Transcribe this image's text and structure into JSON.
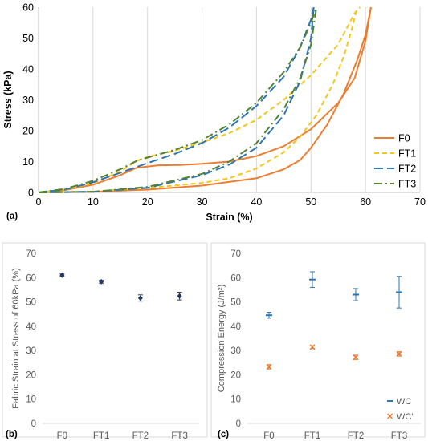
{
  "panels": {
    "a": {
      "tag": "(a)"
    },
    "b": {
      "tag": "(b)"
    },
    "c": {
      "tag": "(c)"
    }
  },
  "chart_data": [
    {
      "panel": "a",
      "type": "line",
      "title": "",
      "xlabel": "Strain (%)",
      "ylabel": "Stress (kPa)",
      "xlim": [
        0,
        70
      ],
      "ylim": [
        0,
        60
      ],
      "xticks": [
        0,
        10,
        20,
        30,
        40,
        50,
        60,
        70
      ],
      "yticks": [
        0,
        10,
        20,
        30,
        40,
        50,
        60
      ],
      "grid": "vertical",
      "legend_position": "right",
      "series": [
        {
          "name": "F0",
          "color": "#ED7D31",
          "dash": "solid",
          "loading": [
            [
              0,
              0
            ],
            [
              5,
              0.8
            ],
            [
              10,
              2.5
            ],
            [
              15,
              5.6
            ],
            [
              18,
              8
            ],
            [
              22,
              8.8
            ],
            [
              26,
              8.9
            ],
            [
              30,
              9.3
            ],
            [
              35,
              10
            ],
            [
              40,
              11.8
            ],
            [
              45,
              15
            ],
            [
              50,
              20.5
            ],
            [
              55,
              29
            ],
            [
              58,
              37
            ],
            [
              60,
              49
            ],
            [
              61,
              60
            ]
          ],
          "unloading": [
            [
              0,
              0
            ],
            [
              10,
              0.2
            ],
            [
              20,
              0.9
            ],
            [
              30,
              2.2
            ],
            [
              40,
              4.6
            ],
            [
              45,
              7.5
            ],
            [
              48,
              10.5
            ],
            [
              50,
              14.5
            ],
            [
              53,
              22
            ],
            [
              56,
              32
            ],
            [
              58.5,
              43
            ],
            [
              60,
              51
            ],
            [
              61,
              60
            ]
          ]
        },
        {
          "name": "FT1",
          "color": "#F5C518",
          "dash": "short-dash",
          "loading": [
            [
              0,
              0
            ],
            [
              5,
              1
            ],
            [
              10,
              3
            ],
            [
              15,
              6.8
            ],
            [
              18,
              10.2
            ],
            [
              20,
              11.5
            ],
            [
              25,
              13.5
            ],
            [
              30,
              16.2
            ],
            [
              35,
              19.2
            ],
            [
              40,
              23.5
            ],
            [
              45,
              30
            ],
            [
              50,
              38
            ],
            [
              55,
              48
            ],
            [
              58,
              58
            ],
            [
              59,
              60
            ]
          ],
          "unloading": [
            [
              0,
              0
            ],
            [
              10,
              0.3
            ],
            [
              20,
              1.4
            ],
            [
              30,
              3.1
            ],
            [
              35,
              4.6
            ],
            [
              40,
              7.8
            ],
            [
              45,
              13
            ],
            [
              48,
              18
            ],
            [
              51,
              25
            ],
            [
              54,
              35
            ],
            [
              56,
              44
            ],
            [
              57.5,
              53
            ],
            [
              58.5,
              60
            ]
          ]
        },
        {
          "name": "FT2",
          "color": "#2E75B6",
          "dash": "long-dash",
          "loading": [
            [
              0,
              0
            ],
            [
              5,
              1
            ],
            [
              10,
              3.3
            ],
            [
              15,
              6.4
            ],
            [
              20,
              9.5
            ],
            [
              25,
              12.5
            ],
            [
              30,
              16
            ],
            [
              35,
              21
            ],
            [
              40,
              28
            ],
            [
              45,
              37.5
            ],
            [
              48,
              47
            ],
            [
              50,
              56
            ],
            [
              50.5,
              60
            ]
          ],
          "unloading": [
            [
              0,
              0
            ],
            [
              10,
              0.2
            ],
            [
              20,
              1.5
            ],
            [
              30,
              5.6
            ],
            [
              35,
              9
            ],
            [
              40,
              14.5
            ],
            [
              45,
              25
            ],
            [
              48,
              36
            ],
            [
              50,
              50
            ],
            [
              50.5,
              60
            ]
          ]
        },
        {
          "name": "FT3",
          "color": "#548235",
          "dash": "dash-dot",
          "loading": [
            [
              0,
              0
            ],
            [
              5,
              1.2
            ],
            [
              10,
              3.8
            ],
            [
              15,
              7.5
            ],
            [
              18,
              10.2
            ],
            [
              20,
              11.3
            ],
            [
              25,
              13.8
            ],
            [
              30,
              17
            ],
            [
              35,
              22
            ],
            [
              40,
              29
            ],
            [
              45,
              39
            ],
            [
              48,
              47
            ],
            [
              50,
              55
            ],
            [
              51,
              60
            ]
          ],
          "unloading": [
            [
              0,
              0
            ],
            [
              10,
              0.2
            ],
            [
              20,
              1.8
            ],
            [
              30,
              6
            ],
            [
              35,
              10
            ],
            [
              40,
              16
            ],
            [
              45,
              27
            ],
            [
              48,
              37
            ],
            [
              50,
              48
            ],
            [
              51,
              60
            ]
          ]
        }
      ]
    },
    {
      "panel": "b",
      "type": "scatter",
      "title": "",
      "xlabel": "",
      "ylabel": "Fabric Strain at Stress of 60kPa (%)",
      "categories": [
        "F0",
        "FT1",
        "FT2",
        "FT3"
      ],
      "ylim": [
        0,
        70
      ],
      "yticks": [
        0,
        10,
        20,
        30,
        40,
        50,
        60,
        70
      ],
      "grid": "none",
      "series": [
        {
          "name": "",
          "color": "#1F3864",
          "values": [
            61,
            58.3,
            51.6,
            52.4
          ],
          "errors": [
            0.5,
            0.6,
            1.3,
            1.6
          ]
        }
      ]
    },
    {
      "panel": "c",
      "type": "scatter",
      "title": "",
      "xlabel": "",
      "ylabel": "Compression Energy (J/m²)",
      "categories": [
        "F0",
        "FT1",
        "FT2",
        "FT3"
      ],
      "ylim": [
        0,
        70
      ],
      "yticks": [
        0,
        10,
        20,
        30,
        40,
        50,
        60,
        70
      ],
      "grid": "none",
      "legend_position": "bottom-right",
      "series": [
        {
          "name": "WC",
          "color": "#2E75B6",
          "marker": "dash",
          "values": [
            44.5,
            59.2,
            53,
            54
          ],
          "errors": [
            1.2,
            3.2,
            2.5,
            6.5
          ]
        },
        {
          "name": "WC'",
          "color": "#ED7D31",
          "marker": "x",
          "values": [
            23.3,
            31.4,
            27.2,
            28.6
          ],
          "errors": [
            0.9,
            0.6,
            0.9,
            0.9
          ]
        }
      ]
    }
  ]
}
